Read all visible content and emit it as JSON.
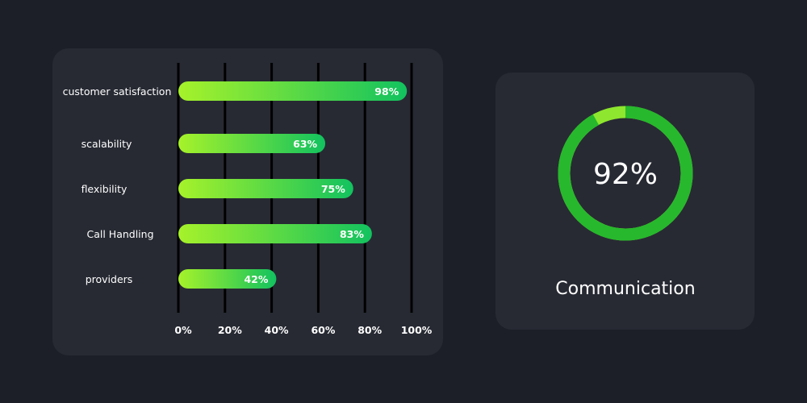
{
  "chart_data": [
    {
      "type": "bar",
      "orientation": "horizontal",
      "categories": [
        "customer satisfaction",
        "scalability",
        "flexibility",
        "Call Handling",
        "providers"
      ],
      "values": [
        98,
        63,
        75,
        83,
        42
      ],
      "value_labels": [
        "98%",
        "63%",
        "75%",
        "83%",
        "42%"
      ],
      "xlim": [
        0,
        100
      ],
      "x_ticks": [
        0,
        20,
        40,
        60,
        80,
        100
      ],
      "x_tick_labels": [
        "0%",
        "20%",
        "40%",
        "60%",
        "80%",
        "100%"
      ],
      "grid": true,
      "colors": {
        "bar_start": "#a6f22a",
        "bar_end": "#12c25f",
        "grid": "#000000"
      }
    },
    {
      "type": "pie",
      "style": "donut",
      "label": "Communication",
      "value": 92,
      "value_label": "92%",
      "colors": {
        "fill": "#27b82d",
        "remainder": "#8ee62e"
      }
    }
  ]
}
